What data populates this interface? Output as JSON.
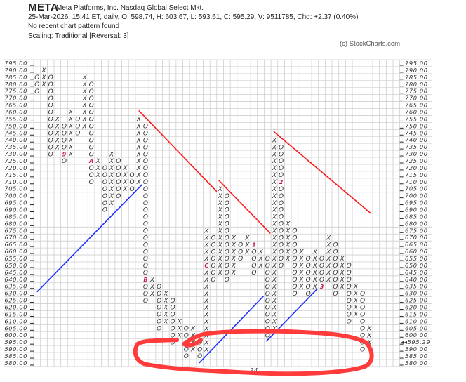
{
  "header": {
    "symbol": "META",
    "name": "Meta Platforms, Inc.  Nasdaq Global Select Mkt.",
    "quote_line": "25-Mar-2026, 15:41 ET, daily, O: 598.74, H: 603.67, L: 593.61, C: 595.29, V: 9511785, Chg: +2.37 (0.40%)",
    "pattern_line": "No recent chart pattern found",
    "scaling_line": "Scaling: Traditional [Reversal: 3]",
    "copyright": "(c) StockCharts.com"
  },
  "colors": {
    "x_o": "#333333",
    "marker": "#c2185b",
    "resistance": "#ff1a1a",
    "support": "#1a2eff",
    "annotation": "#ff3b3b",
    "grid": "#cfcfcf",
    "last_price": "#c2185b"
  },
  "chart_data": {
    "type": "point-and-figure",
    "box_size": 5,
    "reversal": 3,
    "ylim": [
      580,
      795
    ],
    "grid": true,
    "y_ticks_left": [
      "795.00",
      "790.00",
      "785.00",
      "780.00",
      "775.00",
      "770.00",
      "765.00",
      "760.00",
      "755.00",
      "750.00",
      "745.00",
      "740.00",
      "735.00",
      "730.00",
      "725.00",
      "720.00",
      "715.00",
      "710.00",
      "705.00",
      "700.00",
      "695.00",
      "690.00",
      "685.00",
      "680.00",
      "675.00",
      "670.00",
      "665.00",
      "660.00",
      "655.00",
      "650.00",
      "645.00",
      "640.00",
      "635.00",
      "630.00",
      "625.00",
      "620.00",
      "615.00",
      "610.00",
      "605.00",
      "600.00",
      "595.00",
      "590.00",
      "585.00",
      "580.00"
    ],
    "y_ticks_right": [
      "795.00",
      "790.00",
      "785.00",
      "780.00",
      "775.00",
      "770.00",
      "765.00",
      "760.00",
      "755.00",
      "750.00",
      "745.00",
      "740.00",
      "735.00",
      "730.00",
      "725.00",
      "720.00",
      "715.00",
      "710.00",
      "705.00",
      "700.00",
      "695.00",
      "690.00",
      "685.00",
      "680.00",
      "675.00",
      "670.00",
      "665.00",
      "660.00",
      "655.00",
      "650.00",
      "645.00",
      "640.00",
      "635.00",
      "630.00",
      "625.00",
      "620.00",
      "615.00",
      "610.00",
      "605.00",
      "600.00",
      "◂◂595.29",
      "590.00",
      "585.00",
      "580.00"
    ],
    "highlighted_left_tick": "595.00",
    "last_price": 595.29,
    "x_label": "24",
    "columns": [
      {
        "type": "O",
        "high": 785,
        "low": 775
      },
      {
        "type": "X",
        "high": 790,
        "low": 780
      },
      {
        "type": "O",
        "high": 785,
        "low": 730
      },
      {
        "type": "X",
        "high": 755,
        "low": 735
      },
      {
        "type": "O",
        "high": 750,
        "low": 725,
        "markers": {
          "730": "9"
        }
      },
      {
        "type": "X",
        "high": 760,
        "low": 730
      },
      {
        "type": "O",
        "high": 755,
        "low": 745
      },
      {
        "type": "X",
        "high": 785,
        "low": 750
      },
      {
        "type": "O",
        "high": 780,
        "low": 710,
        "markers": {
          "725": "A"
        }
      },
      {
        "type": "X",
        "high": 725,
        "low": 715
      },
      {
        "type": "O",
        "high": 720,
        "low": 690
      },
      {
        "type": "X",
        "high": 730,
        "low": 695
      },
      {
        "type": "O",
        "high": 725,
        "low": 700
      },
      {
        "type": "X",
        "high": 720,
        "low": 705
      },
      {
        "type": "O",
        "high": 715,
        "low": 705
      },
      {
        "type": "X",
        "high": 755,
        "low": 710
      },
      {
        "type": "O",
        "high": 750,
        "low": 625,
        "markers": {
          "640": "B"
        }
      },
      {
        "type": "X",
        "high": 640,
        "low": 630
      },
      {
        "type": "O",
        "high": 635,
        "low": 605
      },
      {
        "type": "X",
        "high": 630,
        "low": 610
      },
      {
        "type": "O",
        "high": 625,
        "low": 595
      },
      {
        "type": "X",
        "high": 610,
        "low": 600
      },
      {
        "type": "O",
        "high": 605,
        "low": 585
      },
      {
        "type": "X",
        "high": 605,
        "low": 590
      },
      {
        "type": "O",
        "high": 595,
        "low": 585
      },
      {
        "type": "X",
        "high": 675,
        "low": 590,
        "markers": {
          "650": "C"
        }
      },
      {
        "type": "O",
        "high": 670,
        "low": 640
      },
      {
        "type": "X",
        "high": 705,
        "low": 645
      },
      {
        "type": "O",
        "high": 700,
        "low": 640
      },
      {
        "type": "X",
        "high": 670,
        "low": 645
      },
      {
        "type": "O",
        "high": 665,
        "low": 655
      },
      {
        "type": "X",
        "high": 670,
        "low": 660
      },
      {
        "type": "O",
        "high": 665,
        "low": 645,
        "markers": {
          "665": "1"
        }
      },
      {
        "type": "X",
        "high": 660,
        "low": 650
      },
      {
        "type": "O",
        "high": 655,
        "low": 600
      },
      {
        "type": "X",
        "high": 740,
        "low": 605
      },
      {
        "type": "O",
        "high": 735,
        "low": 650,
        "markers": {
          "710": "2"
        }
      },
      {
        "type": "X",
        "high": 680,
        "low": 655
      },
      {
        "type": "O",
        "high": 675,
        "low": 630
      },
      {
        "type": "X",
        "high": 660,
        "low": 635
      },
      {
        "type": "O",
        "high": 655,
        "low": 630
      },
      {
        "type": "X",
        "high": 660,
        "low": 635
      },
      {
        "type": "O",
        "high": 655,
        "low": 635,
        "markers": {
          "635": "3"
        }
      },
      {
        "type": "X",
        "high": 670,
        "low": 640
      },
      {
        "type": "O",
        "high": 665,
        "low": 630
      },
      {
        "type": "X",
        "high": 655,
        "low": 635
      },
      {
        "type": "O",
        "high": 650,
        "low": 610
      },
      {
        "type": "X",
        "high": 635,
        "low": 615
      },
      {
        "type": "O",
        "high": 630,
        "low": 590
      },
      {
        "type": "X",
        "high": 605,
        "low": 595
      }
    ],
    "trend_lines": [
      {
        "kind": "resistance",
        "from": {
          "column": 16,
          "price": 761
        },
        "to": {
          "column": 27.5,
          "price": 703
        }
      },
      {
        "kind": "resistance",
        "from": {
          "column": 27.8,
          "price": 711
        },
        "to": {
          "column": 35.4,
          "price": 673
        }
      },
      {
        "kind": "resistance",
        "from": {
          "column": 35.9,
          "price": 746
        },
        "to": {
          "column": 50.3,
          "price": 687
        }
      },
      {
        "kind": "support",
        "from": {
          "column": 1,
          "price": 631
        },
        "to": {
          "column": 16.5,
          "price": 708
        }
      },
      {
        "kind": "support",
        "from": {
          "column": 24.9,
          "price": 580
        },
        "to": {
          "column": 34.4,
          "price": 628
        }
      },
      {
        "kind": "support",
        "from": {
          "column": 34.8,
          "price": 595.5
        },
        "to": {
          "column": 42.3,
          "price": 633
        }
      }
    ]
  }
}
